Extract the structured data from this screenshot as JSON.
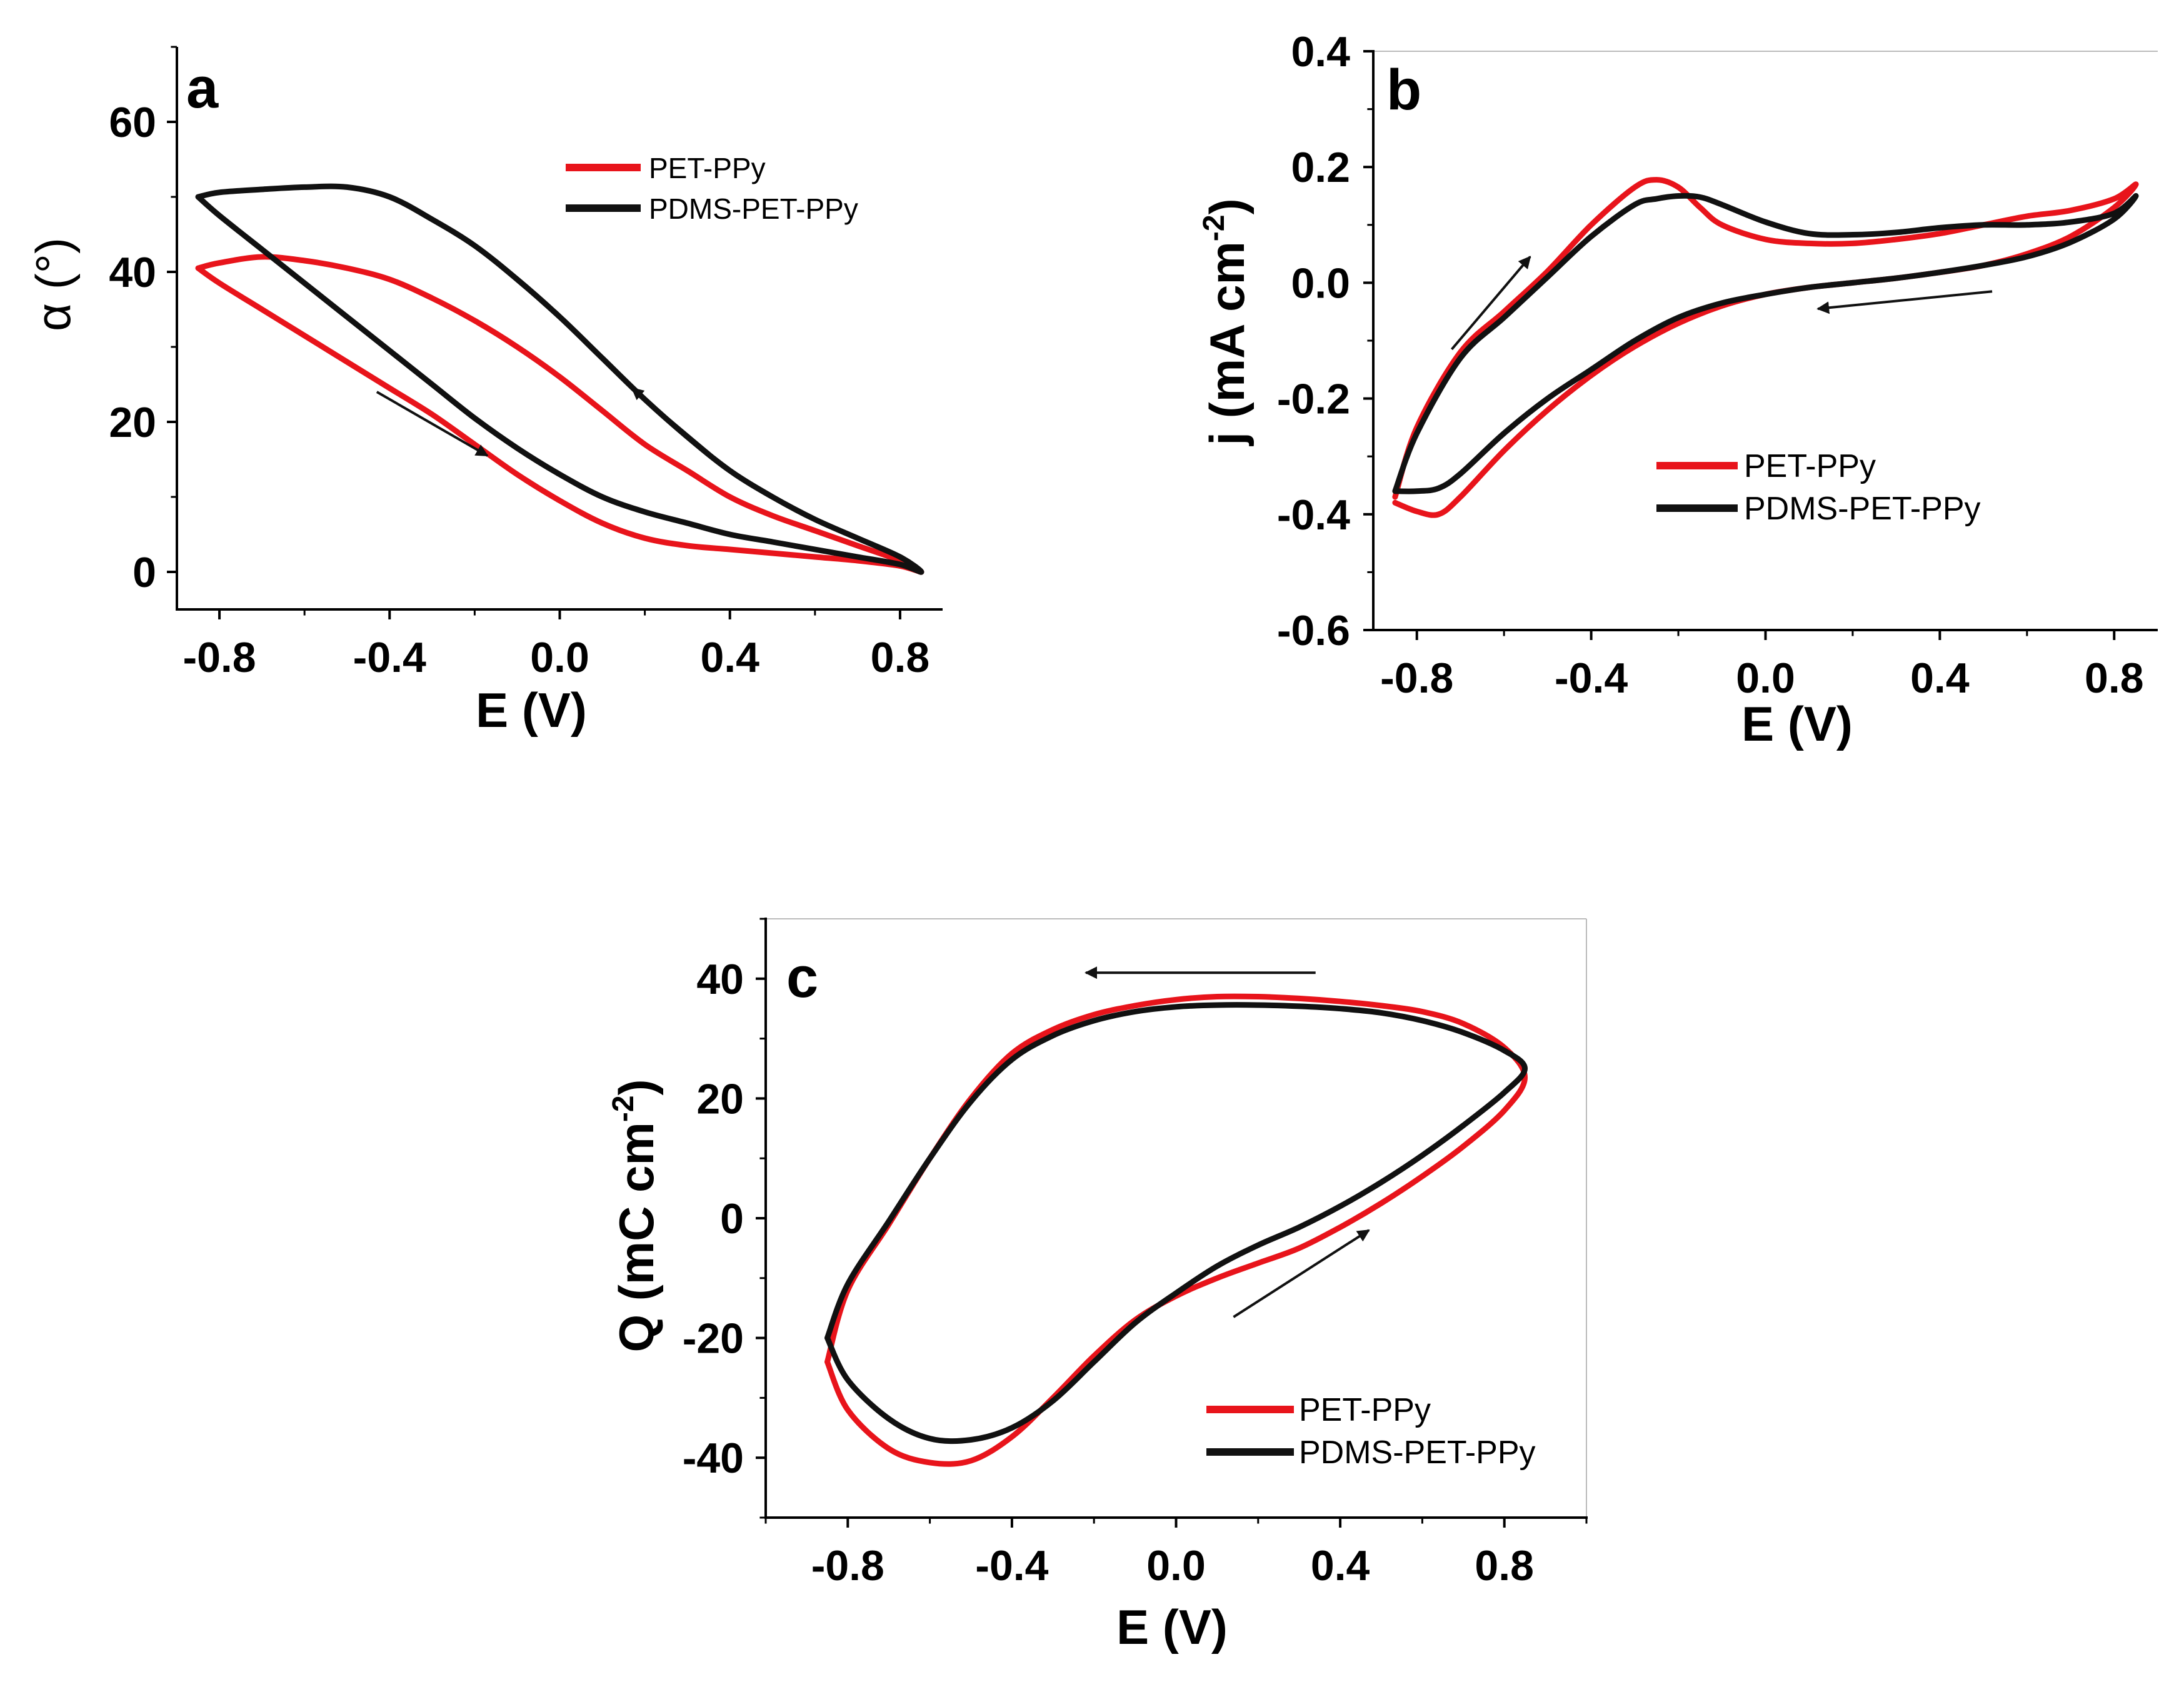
{
  "colors": {
    "pet_ppy": "#e8141b",
    "pdms_pet_ppy": "#111111"
  },
  "chart_data": [
    {
      "id": "a",
      "panel_label": "a",
      "type": "line",
      "xlabel": "E (V)",
      "ylabel": "α (°)",
      "xlim": [
        -0.9,
        0.9
      ],
      "ylim": [
        -5,
        70
      ],
      "xticks": [
        -0.8,
        -0.4,
        0.0,
        0.4,
        0.8
      ],
      "xtick_labels": [
        "-0.8",
        "-0.4",
        "0.0",
        "0.4",
        "0.8"
      ],
      "yticks": [
        0,
        20,
        40,
        60
      ],
      "ytick_labels": [
        "0",
        "20",
        "40",
        "60"
      ],
      "legend": [
        "PET-PPy",
        "PDMS-PET-PPy"
      ],
      "arrows": [
        {
          "from": [
            -0.43,
            24
          ],
          "to": [
            -0.17,
            15.5
          ]
        },
        {
          "from": [
            0.38,
            14.5
          ],
          "to": [
            0.17,
            24.5
          ]
        }
      ],
      "series": [
        {
          "name": "PET-PPy",
          "color_key": "pet_ppy",
          "x": [
            -0.85,
            -0.8,
            -0.7,
            -0.6,
            -0.5,
            -0.4,
            -0.3,
            -0.2,
            -0.1,
            0.0,
            0.1,
            0.2,
            0.3,
            0.4,
            0.5,
            0.6,
            0.7,
            0.8,
            0.85,
            0.8,
            0.7,
            0.6,
            0.5,
            0.4,
            0.3,
            0.2,
            0.1,
            0.0,
            -0.1,
            -0.2,
            -0.3,
            -0.4,
            -0.5,
            -0.6,
            -0.7,
            -0.8,
            -0.85
          ],
          "y": [
            40.5,
            38.5,
            35,
            31.5,
            28,
            24.5,
            21,
            17,
            13,
            9.5,
            6.5,
            4.5,
            3.5,
            3,
            2.5,
            2,
            1.5,
            0.8,
            0,
            1.5,
            3.5,
            5.5,
            7.5,
            10,
            13.5,
            17,
            21.5,
            26,
            30,
            33.5,
            36.5,
            39,
            40.5,
            41.5,
            42,
            41.2,
            40.5
          ]
        },
        {
          "name": "PDMS-PET-PPy",
          "color_key": "pdms_pet_ppy",
          "x": [
            -0.85,
            -0.8,
            -0.7,
            -0.6,
            -0.5,
            -0.4,
            -0.3,
            -0.2,
            -0.1,
            0.0,
            0.1,
            0.2,
            0.3,
            0.4,
            0.5,
            0.6,
            0.7,
            0.8,
            0.85,
            0.8,
            0.7,
            0.6,
            0.5,
            0.4,
            0.3,
            0.2,
            0.1,
            0.0,
            -0.1,
            -0.2,
            -0.3,
            -0.4,
            -0.5,
            -0.6,
            -0.7,
            -0.8,
            -0.85
          ],
          "y": [
            50,
            47.5,
            43,
            38.5,
            34,
            29.5,
            25,
            20.5,
            16.5,
            13,
            10,
            8,
            6.5,
            5,
            4,
            3,
            2,
            1,
            0,
            2,
            4.5,
            7,
            10,
            13.5,
            18,
            23,
            28.5,
            34,
            39,
            43.5,
            47,
            50,
            51.3,
            51.3,
            51,
            50.6,
            50
          ]
        }
      ]
    },
    {
      "id": "b",
      "panel_label": "b",
      "type": "line",
      "xlabel": "E (V)",
      "ylabel": "j (mA cm",
      "ylabel_sup": "-2",
      "ylabel_close": ")",
      "xlim": [
        -0.9,
        0.9
      ],
      "ylim": [
        -0.6,
        0.4
      ],
      "xticks": [
        -0.8,
        -0.4,
        0.0,
        0.4,
        0.8
      ],
      "xtick_labels": [
        "-0.8",
        "-0.4",
        "0.0",
        "0.4",
        "0.8"
      ],
      "yticks": [
        -0.6,
        -0.4,
        -0.2,
        0.0,
        0.2,
        0.4
      ],
      "ytick_labels": [
        "-0.6",
        "-0.4",
        "-0.2",
        "0.0",
        "0.2",
        "0.4"
      ],
      "legend": [
        "PET-PPy",
        "PDMS-PET-PPy"
      ],
      "arrows": [
        {
          "from": [
            -0.72,
            -0.115
          ],
          "to": [
            -0.54,
            0.045
          ]
        },
        {
          "from": [
            0.52,
            -0.015
          ],
          "to": [
            0.12,
            -0.045
          ]
        }
      ],
      "series": [
        {
          "name": "PET-PPy",
          "color_key": "pet_ppy",
          "x": [
            -0.85,
            -0.8,
            -0.7,
            -0.6,
            -0.5,
            -0.4,
            -0.3,
            -0.25,
            -0.2,
            -0.15,
            -0.1,
            0.0,
            0.1,
            0.2,
            0.3,
            0.4,
            0.5,
            0.6,
            0.7,
            0.8,
            0.85,
            0.8,
            0.7,
            0.6,
            0.5,
            0.4,
            0.3,
            0.2,
            0.1,
            0.0,
            -0.1,
            -0.2,
            -0.3,
            -0.4,
            -0.5,
            -0.6,
            -0.7,
            -0.75,
            -0.8,
            -0.85
          ],
          "y": [
            -0.37,
            -0.25,
            -0.12,
            -0.05,
            0.02,
            0.1,
            0.165,
            0.178,
            0.165,
            0.13,
            0.1,
            0.075,
            0.068,
            0.068,
            0.075,
            0.085,
            0.1,
            0.115,
            0.125,
            0.145,
            0.17,
            0.13,
            0.08,
            0.05,
            0.03,
            0.018,
            0.008,
            0.0,
            -0.008,
            -0.02,
            -0.04,
            -0.07,
            -0.11,
            -0.16,
            -0.22,
            -0.29,
            -0.37,
            -0.4,
            -0.395,
            -0.38
          ]
        },
        {
          "name": "PDMS-PET-PPy",
          "color_key": "pdms_pet_ppy",
          "x": [
            -0.85,
            -0.8,
            -0.7,
            -0.6,
            -0.5,
            -0.4,
            -0.3,
            -0.25,
            -0.2,
            -0.15,
            -0.1,
            0.0,
            0.1,
            0.2,
            0.3,
            0.4,
            0.5,
            0.6,
            0.7,
            0.8,
            0.85,
            0.8,
            0.7,
            0.6,
            0.5,
            0.4,
            0.3,
            0.2,
            0.1,
            0.0,
            -0.1,
            -0.2,
            -0.3,
            -0.4,
            -0.5,
            -0.6,
            -0.7,
            -0.75,
            -0.8,
            -0.85
          ],
          "y": [
            -0.36,
            -0.26,
            -0.13,
            -0.06,
            0.01,
            0.08,
            0.135,
            0.145,
            0.15,
            0.148,
            0.135,
            0.105,
            0.085,
            0.083,
            0.087,
            0.095,
            0.1,
            0.1,
            0.105,
            0.12,
            0.15,
            0.11,
            0.07,
            0.045,
            0.03,
            0.018,
            0.008,
            0.0,
            -0.008,
            -0.02,
            -0.035,
            -0.06,
            -0.1,
            -0.15,
            -0.2,
            -0.26,
            -0.33,
            -0.355,
            -0.36,
            -0.36
          ]
        }
      ]
    },
    {
      "id": "c",
      "panel_label": "c",
      "type": "line",
      "xlabel": "E (V)",
      "ylabel": "Q (mC cm",
      "ylabel_sup": "-2",
      "ylabel_close": ")",
      "xlim": [
        -1.0,
        1.0
      ],
      "ylim": [
        -50,
        50
      ],
      "xticks": [
        -0.8,
        -0.4,
        0.0,
        0.4,
        0.8
      ],
      "xtick_labels": [
        "-0.8",
        "-0.4",
        "0.0",
        "0.4",
        "0.8"
      ],
      "yticks": [
        -40,
        -20,
        0,
        20,
        40
      ],
      "ytick_labels": [
        "-40",
        "-20",
        "0",
        "20",
        "40"
      ],
      "legend": [
        "PET-PPy",
        "PDMS-PET-PPy"
      ],
      "arrows": [
        {
          "from": [
            0.34,
            41
          ],
          "to": [
            -0.22,
            41
          ]
        },
        {
          "from": [
            0.14,
            -16.5
          ],
          "to": [
            0.47,
            -2
          ]
        }
      ],
      "series": [
        {
          "name": "PET-PPy",
          "color_key": "pet_ppy",
          "x": [
            -0.85,
            -0.8,
            -0.7,
            -0.6,
            -0.5,
            -0.4,
            -0.3,
            -0.2,
            -0.1,
            0.0,
            0.1,
            0.2,
            0.3,
            0.4,
            0.5,
            0.6,
            0.7,
            0.8,
            0.85,
            0.8,
            0.7,
            0.6,
            0.5,
            0.4,
            0.3,
            0.2,
            0.1,
            0.0,
            -0.1,
            -0.2,
            -0.3,
            -0.4,
            -0.5,
            -0.6,
            -0.7,
            -0.8,
            -0.85
          ],
          "y": [
            -24,
            -32,
            -38.5,
            -40.8,
            -40.5,
            -36.5,
            -30,
            -23,
            -17,
            -13,
            -10,
            -7.5,
            -5,
            -1.5,
            2.5,
            7,
            12,
            18,
            23.5,
            28.5,
            32.5,
            34.5,
            35.5,
            36.2,
            36.7,
            37,
            37,
            36.5,
            35.5,
            34,
            31.5,
            27.5,
            20,
            10,
            -1,
            -12,
            -24
          ]
        },
        {
          "name": "PDMS-PET-PPy",
          "color_key": "pdms_pet_ppy",
          "x": [
            -0.85,
            -0.8,
            -0.7,
            -0.6,
            -0.5,
            -0.4,
            -0.3,
            -0.2,
            -0.1,
            0.0,
            0.1,
            0.2,
            0.3,
            0.4,
            0.5,
            0.6,
            0.7,
            0.8,
            0.85,
            0.8,
            0.7,
            0.6,
            0.5,
            0.4,
            0.3,
            0.2,
            0.1,
            0.0,
            -0.1,
            -0.2,
            -0.3,
            -0.4,
            -0.5,
            -0.6,
            -0.7,
            -0.8,
            -0.85
          ],
          "y": [
            -20,
            -27,
            -33.5,
            -36.8,
            -37,
            -35,
            -30.5,
            -24,
            -17.5,
            -12.5,
            -8,
            -4.5,
            -1.5,
            2,
            6,
            10.5,
            15.5,
            21,
            25,
            28,
            31,
            33,
            34.3,
            35,
            35.4,
            35.6,
            35.6,
            35.3,
            34.5,
            33,
            30.5,
            26.5,
            19.5,
            10,
            -0.5,
            -11,
            -20
          ]
        }
      ]
    }
  ]
}
